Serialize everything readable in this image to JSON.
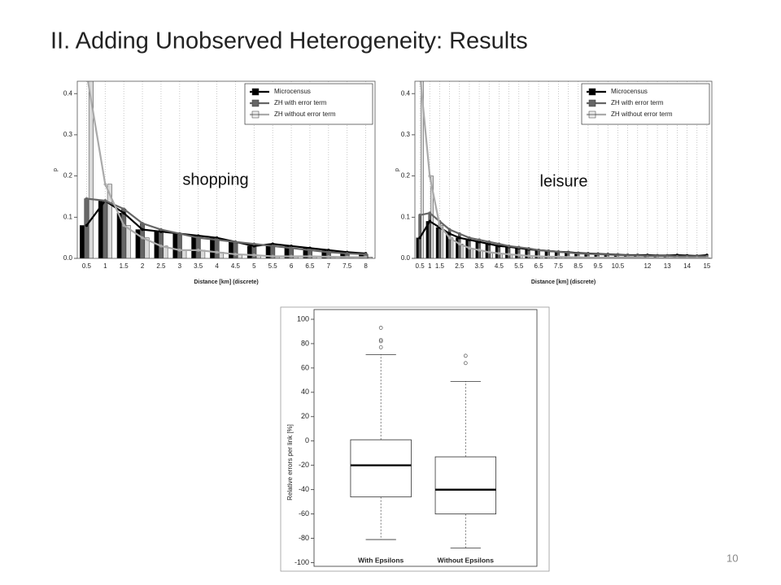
{
  "slide_title": "II. Adding Unobserved Heterogeneity: Results",
  "page_number": "10",
  "chart_data": [
    {
      "type": "bar",
      "annotation": "shopping",
      "ylabel": "p",
      "xlabel": "Distance [km] (discrete)",
      "categories": [
        "0.5",
        "1",
        "1.5",
        "2",
        "2.5",
        "3",
        "3.5",
        "4",
        "4.5",
        "5",
        "5.5",
        "6",
        "6.5",
        "7",
        "7.5",
        "8"
      ],
      "series": [
        {
          "name": "Microcensus",
          "color": "#000000",
          "values": [
            0.08,
            0.14,
            0.11,
            0.07,
            0.065,
            0.06,
            0.055,
            0.05,
            0.04,
            0.03,
            0.035,
            0.03,
            0.025,
            0.02,
            0.015,
            0.012
          ]
        },
        {
          "name": "ZH with error term",
          "color": "#666666",
          "values": [
            0.145,
            0.14,
            0.12,
            0.085,
            0.07,
            0.06,
            0.05,
            0.045,
            0.04,
            0.035,
            0.03,
            0.025,
            0.02,
            0.015,
            0.012,
            0.01
          ]
        },
        {
          "name": "ZH without error term",
          "color": "#aaaaaa",
          "values": [
            0.45,
            0.18,
            0.08,
            0.05,
            0.03,
            0.02,
            0.02,
            0.015,
            0.01,
            0.008,
            0.005,
            0.005,
            0.005,
            0.004,
            0.003,
            0.003
          ]
        }
      ],
      "ylim": [
        0,
        0.43
      ],
      "yticks": [
        {
          "value": 0,
          "label": "0.0"
        },
        {
          "value": 0.1,
          "label": "0.1"
        },
        {
          "value": 0.2,
          "label": "0.2"
        },
        {
          "value": 0.3,
          "label": "0.3"
        },
        {
          "value": 0.4,
          "label": "0.4"
        }
      ],
      "grid": "x",
      "legend": "upper right"
    },
    {
      "type": "bar",
      "annotation": "leisure",
      "ylabel": "p",
      "xlabel": "Distance [km] (discrete)",
      "categories": [
        "0.5",
        "1",
        "1.5",
        null,
        "2.5",
        null,
        "3.5",
        null,
        "4.5",
        null,
        "5.5",
        null,
        "6.5",
        null,
        "7.5",
        null,
        "8.5",
        null,
        "9.5",
        null,
        "10.5",
        null,
        null,
        "12",
        null,
        "13",
        null,
        "14",
        null,
        "15"
      ],
      "series": [
        {
          "name": "Microcensus",
          "color": "#000000",
          "values": [
            0.05,
            0.09,
            0.075,
            0.06,
            0.05,
            0.045,
            0.04,
            0.035,
            0.03,
            0.028,
            0.025,
            0.022,
            0.02,
            0.018,
            0.016,
            0.015,
            0.013,
            0.012,
            0.011,
            0.01,
            0.009,
            0.008,
            0.008,
            0.008,
            0.007,
            0.007,
            0.008,
            0.007,
            0.006,
            0.008
          ]
        },
        {
          "name": "ZH with error term",
          "color": "#666666",
          "values": [
            0.105,
            0.11,
            0.09,
            0.07,
            0.06,
            0.05,
            0.045,
            0.04,
            0.035,
            0.03,
            0.027,
            0.024,
            0.02,
            0.018,
            0.016,
            0.014,
            0.012,
            0.011,
            0.01,
            0.009,
            0.008,
            0.007,
            0.007,
            0.006,
            0.006,
            0.006,
            0.005,
            0.005,
            0.005,
            0.005
          ]
        },
        {
          "name": "ZH without error term",
          "color": "#aaaaaa",
          "values": [
            0.45,
            0.2,
            0.08,
            0.05,
            0.035,
            0.025,
            0.02,
            0.015,
            0.012,
            0.01,
            0.008,
            0.006,
            0.005,
            0.004,
            0.004,
            0.003,
            0.003,
            0.002,
            0.002,
            0.002,
            0.002,
            0.002,
            0.002,
            0.001,
            0.001,
            0.001,
            0.001,
            0.001,
            0.001,
            0.001
          ]
        }
      ],
      "ylim": [
        0,
        0.43
      ],
      "yticks": [
        {
          "value": 0,
          "label": "0.0"
        },
        {
          "value": 0.1,
          "label": "0.1"
        },
        {
          "value": 0.2,
          "label": "0.2"
        },
        {
          "value": 0.3,
          "label": "0.3"
        },
        {
          "value": 0.4,
          "label": "0.4"
        }
      ],
      "grid": "x",
      "legend": "upper right"
    },
    {
      "type": "box",
      "ylabel": "Relative errors per link [%]",
      "categories": [
        "With Epsilons",
        "Without Epsilons"
      ],
      "boxes": [
        {
          "min": -81,
          "q1": -46,
          "median": -20,
          "q3": 1,
          "max": 71,
          "outliers": [
            77,
            82,
            83,
            93
          ]
        },
        {
          "min": -88,
          "q1": -60,
          "median": -40,
          "q3": -13,
          "max": 49,
          "outliers": [
            64,
            70
          ]
        }
      ],
      "ylim": [
        -103,
        108
      ],
      "yticks": [
        -100,
        -80,
        -60,
        -40,
        -20,
        0,
        20,
        40,
        60,
        80,
        100
      ]
    }
  ]
}
